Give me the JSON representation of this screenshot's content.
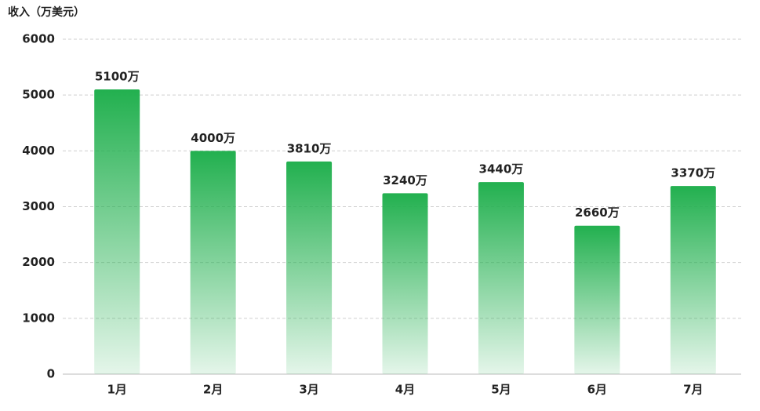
{
  "chart_data": {
    "type": "bar",
    "title": "收入（万美元）",
    "categories": [
      "1月",
      "2月",
      "3月",
      "4月",
      "5月",
      "6月",
      "7月"
    ],
    "values": [
      5100,
      4000,
      3810,
      3240,
      3440,
      2660,
      3370
    ],
    "value_labels": [
      "5100万",
      "4000万",
      "3810万",
      "3240万",
      "3440万",
      "2660万",
      "3370万"
    ],
    "color": "#22b04f",
    "ylim": [
      0,
      6000
    ],
    "yticks": [
      0,
      1000,
      2000,
      3000,
      4000,
      5000,
      6000
    ],
    "grid": true
  }
}
